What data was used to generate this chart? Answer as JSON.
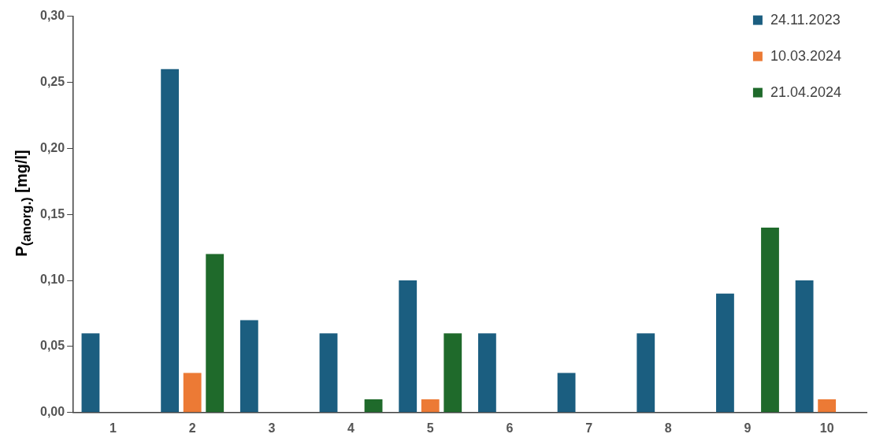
{
  "chart_data": {
    "type": "bar",
    "ylabel": "P$_{(anorg.)}$ [mg/l]",
    "categories": [
      "1",
      "2",
      "3",
      "4",
      "5",
      "6",
      "7",
      "8",
      "9",
      "10"
    ],
    "series": [
      {
        "name": "24.11.2023",
        "color": "#1b5e80",
        "values": [
          0.06,
          0.26,
          0.07,
          0.06,
          0.1,
          0.06,
          0.03,
          0.06,
          0.09,
          0.1
        ]
      },
      {
        "name": "10.03.2024",
        "color": "#ec7a35",
        "values": [
          0,
          0.03,
          0,
          0,
          0.01,
          0,
          0,
          0,
          0,
          0.01
        ]
      },
      {
        "name": "21.04.2024",
        "color": "#1f6a2b",
        "values": [
          0,
          0.12,
          0,
          0.01,
          0.06,
          0,
          0,
          0,
          0.14,
          0
        ]
      }
    ],
    "ylim": [
      0,
      0.3
    ],
    "yticks": [
      {
        "value": 0,
        "label": "0,00"
      },
      {
        "value": 0.05,
        "label": "0,05"
      },
      {
        "value": 0.1,
        "label": "0,10"
      },
      {
        "value": 0.15,
        "label": "0,15"
      },
      {
        "value": 0.2,
        "label": "0,20"
      },
      {
        "value": 0.25,
        "label": "0,25"
      },
      {
        "value": 0.3,
        "label": "0,30"
      }
    ],
    "grid": false,
    "legend": "top right"
  }
}
